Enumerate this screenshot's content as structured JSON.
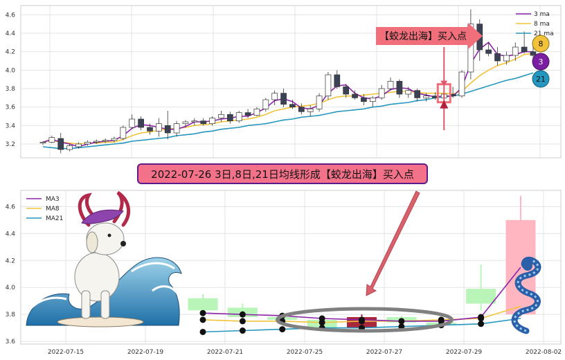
{
  "chart_data": [
    {
      "type": "candlestick",
      "title": "",
      "xlabel": "",
      "ylabel": "",
      "ylim": [
        3.05,
        4.7
      ],
      "yticks": [
        "3.2",
        "3.4",
        "3.6",
        "3.8",
        "4.0",
        "4.2",
        "4.4",
        "4.6"
      ],
      "grid": true,
      "legend_position": "top-right",
      "legend": [
        "3 ma",
        "8 ma",
        "21 ma"
      ],
      "colors": {
        "ma3": "#8e24aa",
        "ma8": "#f2c33a",
        "ma21": "#2596be",
        "up": "#ffffff",
        "down": "#3b4256",
        "edge": "#333333"
      },
      "candles": [
        [
          3.21,
          3.23,
          3.19,
          3.22
        ],
        [
          3.22,
          3.29,
          3.21,
          3.27
        ],
        [
          3.26,
          3.32,
          3.1,
          3.14
        ],
        [
          3.14,
          3.2,
          3.12,
          3.18
        ],
        [
          3.17,
          3.22,
          3.15,
          3.2
        ],
        [
          3.2,
          3.24,
          3.18,
          3.22
        ],
        [
          3.22,
          3.25,
          3.2,
          3.23
        ],
        [
          3.23,
          3.26,
          3.21,
          3.24
        ],
        [
          3.24,
          3.28,
          3.22,
          3.26
        ],
        [
          3.26,
          3.4,
          3.24,
          3.38
        ],
        [
          3.38,
          3.52,
          3.36,
          3.47
        ],
        [
          3.47,
          3.5,
          3.35,
          3.38
        ],
        [
          3.38,
          3.42,
          3.3,
          3.34
        ],
        [
          3.34,
          3.48,
          3.28,
          3.42
        ],
        [
          3.4,
          3.56,
          3.25,
          3.32
        ],
        [
          3.32,
          3.45,
          3.28,
          3.42
        ],
        [
          3.42,
          3.46,
          3.38,
          3.44
        ],
        [
          3.44,
          3.48,
          3.4,
          3.45
        ],
        [
          3.45,
          3.48,
          3.4,
          3.42
        ],
        [
          3.42,
          3.5,
          3.4,
          3.48
        ],
        [
          3.48,
          3.56,
          3.44,
          3.52
        ],
        [
          3.52,
          3.55,
          3.42,
          3.45
        ],
        [
          3.45,
          3.56,
          3.43,
          3.54
        ],
        [
          3.54,
          3.58,
          3.48,
          3.51
        ],
        [
          3.51,
          3.6,
          3.5,
          3.58
        ],
        [
          3.58,
          3.7,
          3.55,
          3.68
        ],
        [
          3.68,
          3.78,
          3.62,
          3.75
        ],
        [
          3.75,
          3.8,
          3.6,
          3.63
        ],
        [
          3.63,
          3.68,
          3.58,
          3.6
        ],
        [
          3.6,
          3.64,
          3.52,
          3.55
        ],
        [
          3.55,
          3.62,
          3.5,
          3.58
        ],
        [
          3.58,
          3.75,
          3.55,
          3.72
        ],
        [
          3.72,
          3.98,
          3.68,
          3.95
        ],
        [
          3.95,
          4.0,
          3.8,
          3.82
        ],
        [
          3.82,
          3.85,
          3.7,
          3.74
        ],
        [
          3.74,
          3.78,
          3.68,
          3.7
        ],
        [
          3.7,
          3.74,
          3.62,
          3.66
        ],
        [
          3.66,
          3.72,
          3.6,
          3.7
        ],
        [
          3.7,
          3.84,
          3.68,
          3.8
        ],
        [
          3.8,
          3.92,
          3.78,
          3.88
        ],
        [
          3.88,
          3.9,
          3.7,
          3.74
        ],
        [
          3.74,
          3.82,
          3.7,
          3.78
        ],
        [
          3.78,
          3.8,
          3.66,
          3.7
        ],
        [
          3.7,
          3.75,
          3.66,
          3.72
        ],
        [
          3.72,
          3.76,
          3.68,
          3.7
        ],
        [
          3.7,
          3.78,
          3.68,
          3.74
        ],
        [
          3.74,
          3.82,
          3.7,
          3.72
        ],
        [
          3.72,
          4.0,
          3.7,
          3.98
        ],
        [
          3.98,
          4.66,
          3.9,
          4.5
        ],
        [
          4.5,
          4.55,
          4.1,
          4.22
        ],
        [
          4.22,
          4.3,
          4.15,
          4.18
        ],
        [
          4.18,
          4.25,
          4.05,
          4.1
        ],
        [
          4.1,
          4.2,
          4.06,
          4.16
        ],
        [
          4.16,
          4.3,
          4.1,
          4.25
        ],
        [
          4.25,
          4.42,
          4.18,
          4.2
        ],
        [
          4.2,
          4.28,
          4.12,
          4.16
        ]
      ],
      "ma3": [
        3.22,
        3.25,
        3.22,
        3.2,
        3.17,
        3.2,
        3.22,
        3.23,
        3.24,
        3.29,
        3.37,
        3.41,
        3.4,
        3.38,
        3.36,
        3.36,
        3.39,
        3.44,
        3.44,
        3.45,
        3.47,
        3.48,
        3.5,
        3.5,
        3.54,
        3.59,
        3.67,
        3.69,
        3.66,
        3.59,
        3.58,
        3.62,
        3.75,
        3.83,
        3.84,
        3.75,
        3.7,
        3.69,
        3.72,
        3.79,
        3.81,
        3.8,
        3.75,
        3.73,
        3.71,
        3.72,
        3.72,
        3.81,
        4.07,
        4.23,
        4.3,
        4.17,
        4.15,
        4.17,
        4.2,
        4.2
      ],
      "ma8": [
        3.22,
        3.24,
        3.22,
        3.21,
        3.2,
        3.21,
        3.21,
        3.22,
        3.22,
        3.25,
        3.29,
        3.32,
        3.33,
        3.35,
        3.36,
        3.37,
        3.38,
        3.4,
        3.41,
        3.42,
        3.44,
        3.45,
        3.46,
        3.47,
        3.49,
        3.52,
        3.56,
        3.58,
        3.6,
        3.61,
        3.62,
        3.64,
        3.68,
        3.71,
        3.72,
        3.72,
        3.73,
        3.74,
        3.75,
        3.76,
        3.77,
        3.77,
        3.76,
        3.75,
        3.75,
        3.75,
        3.74,
        3.77,
        3.86,
        3.94,
        4.0,
        4.05,
        4.08,
        4.12,
        4.17,
        4.18
      ],
      "ma21": [
        3.17,
        3.16,
        3.15,
        3.15,
        3.16,
        3.17,
        3.18,
        3.19,
        3.2,
        3.21,
        3.23,
        3.24,
        3.25,
        3.26,
        3.27,
        3.29,
        3.3,
        3.31,
        3.33,
        3.34,
        3.36,
        3.37,
        3.38,
        3.4,
        3.41,
        3.42,
        3.44,
        3.46,
        3.47,
        3.49,
        3.5,
        3.51,
        3.53,
        3.55,
        3.56,
        3.57,
        3.58,
        3.6,
        3.61,
        3.63,
        3.64,
        3.65,
        3.67,
        3.68,
        3.7,
        3.71,
        3.72,
        3.74,
        3.77,
        3.8,
        3.83,
        3.86,
        3.89,
        3.91,
        3.94,
        3.97
      ],
      "badges": [
        "8",
        "3",
        "21"
      ],
      "annotation": "【蛟龙出海】买入点",
      "signal_index": 45
    },
    {
      "type": "candlestick",
      "title": "",
      "xlabel": "",
      "ylabel": "",
      "ylim": [
        3.58,
        4.72
      ],
      "yticks": [
        "3.6",
        "3.8",
        "4.0",
        "4.2",
        "4.4",
        "4.6"
      ],
      "xticks": [
        "2022-07-15",
        "2022-07-19",
        "2022-07-21",
        "2022-07-25",
        "2022-07-27",
        "2022-07-29",
        "2022-08-02"
      ],
      "grid": true,
      "legend_position": "top-left",
      "legend": [
        "MA3",
        "MA8",
        "MA21"
      ],
      "colors": {
        "ma3": "#8e24aa",
        "ma8": "#f2c33a",
        "ma21": "#2596be",
        "up": "#ffb6c1",
        "down": "#b9f5b9",
        "signal": "#a8273a",
        "ellipse": "#808080"
      },
      "candles": [
        [
          3.92,
          3.95,
          3.82,
          3.83
        ],
        [
          3.85,
          3.88,
          3.77,
          3.78
        ],
        [
          3.78,
          3.8,
          3.75,
          3.76
        ],
        [
          3.76,
          3.78,
          3.69,
          3.7
        ],
        [
          3.7,
          3.8,
          3.68,
          3.78
        ],
        [
          3.78,
          3.79,
          3.72,
          3.74
        ],
        [
          3.74,
          3.78,
          3.7,
          3.72
        ],
        [
          3.99,
          4.17,
          3.83,
          3.88
        ],
        [
          3.8,
          4.68,
          3.78,
          4.5
        ]
      ],
      "ma3": [
        3.81,
        3.8,
        3.79,
        3.77,
        3.76,
        3.75,
        3.75,
        3.78,
        4.15
      ],
      "ma8": [
        3.76,
        3.75,
        3.75,
        3.74,
        3.75,
        3.75,
        3.76,
        3.77,
        3.86
      ],
      "ma21": [
        3.67,
        3.68,
        3.69,
        3.7,
        3.7,
        3.71,
        3.72,
        3.73,
        3.77
      ],
      "signal_index": 4
    }
  ],
  "banner": "2022-07-26 3日,8日,21日均线形成【蛟龙出海】买入点"
}
